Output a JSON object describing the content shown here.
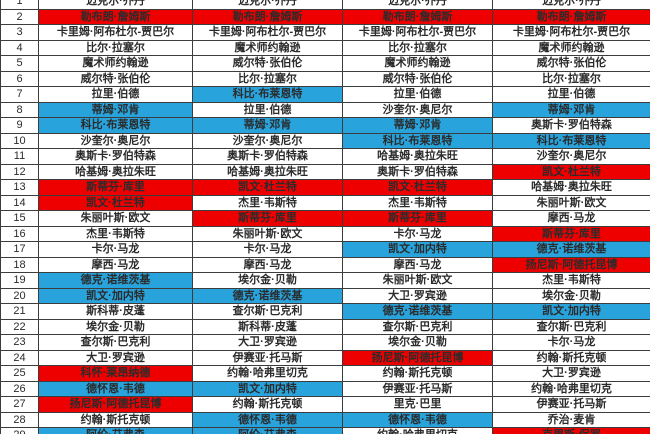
{
  "colors": {
    "red_highlight": "#ee0000",
    "blue_highlight": "#29a3dc",
    "grid_line": "#3c3c3c",
    "text": "#2b2b2b"
  },
  "table": {
    "description": "4-column all-time NBA player ranking comparison table, rows 1-29, red and blue highlighted cells",
    "rows": [
      {
        "rank": "1",
        "cells": [
          {
            "text": "迈克尔·乔丹",
            "hl": ""
          },
          {
            "text": "迈克尔·乔丹",
            "hl": ""
          },
          {
            "text": "迈克尔·乔丹",
            "hl": ""
          },
          {
            "text": "迈克尔·乔丹",
            "hl": ""
          }
        ]
      },
      {
        "rank": "2",
        "cells": [
          {
            "text": "勒布朗·詹姆斯",
            "hl": "red"
          },
          {
            "text": "勒布朗·詹姆斯",
            "hl": "red"
          },
          {
            "text": "勒布朗·詹姆斯",
            "hl": "red"
          },
          {
            "text": "勒布朗·詹姆斯",
            "hl": "red"
          }
        ]
      },
      {
        "rank": "3",
        "cells": [
          {
            "text": "卡里姆·阿布杜尔-贾巴尔",
            "hl": ""
          },
          {
            "text": "卡里姆·阿布杜尔-贾巴尔",
            "hl": ""
          },
          {
            "text": "卡里姆·阿布杜尔-贾巴尔",
            "hl": ""
          },
          {
            "text": "卡里姆·阿布杜尔-贾巴尔",
            "hl": ""
          }
        ]
      },
      {
        "rank": "4",
        "cells": [
          {
            "text": "比尔·拉塞尔",
            "hl": ""
          },
          {
            "text": "魔术师约翰逊",
            "hl": ""
          },
          {
            "text": "比尔·拉塞尔",
            "hl": ""
          },
          {
            "text": "魔术师约翰逊",
            "hl": ""
          }
        ]
      },
      {
        "rank": "5",
        "cells": [
          {
            "text": "魔术师约翰逊",
            "hl": ""
          },
          {
            "text": "威尔特·张伯伦",
            "hl": ""
          },
          {
            "text": "魔术师约翰逊",
            "hl": ""
          },
          {
            "text": "威尔特·张伯伦",
            "hl": ""
          }
        ]
      },
      {
        "rank": "6",
        "cells": [
          {
            "text": "威尔特·张伯伦",
            "hl": ""
          },
          {
            "text": "比尔·拉塞尔",
            "hl": ""
          },
          {
            "text": "威尔特·张伯伦",
            "hl": ""
          },
          {
            "text": "比尔·拉塞尔",
            "hl": ""
          }
        ]
      },
      {
        "rank": "7",
        "cells": [
          {
            "text": "拉里·伯德",
            "hl": ""
          },
          {
            "text": "科比·布莱恩特",
            "hl": "blue"
          },
          {
            "text": "拉里·伯德",
            "hl": ""
          },
          {
            "text": "拉里·伯德",
            "hl": ""
          }
        ]
      },
      {
        "rank": "8",
        "cells": [
          {
            "text": "蒂姆·邓肯",
            "hl": "blue"
          },
          {
            "text": "拉里·伯德",
            "hl": ""
          },
          {
            "text": "沙奎尔·奥尼尔",
            "hl": ""
          },
          {
            "text": "蒂姆·邓肯",
            "hl": "blue"
          }
        ]
      },
      {
        "rank": "9",
        "cells": [
          {
            "text": "科比·布莱恩特",
            "hl": "blue"
          },
          {
            "text": "蒂姆·邓肯",
            "hl": "blue"
          },
          {
            "text": "蒂姆·邓肯",
            "hl": "blue"
          },
          {
            "text": "奥斯卡·罗伯特森",
            "hl": ""
          }
        ]
      },
      {
        "rank": "10",
        "cells": [
          {
            "text": "沙奎尔·奥尼尔",
            "hl": ""
          },
          {
            "text": "沙奎尔·奥尼尔",
            "hl": ""
          },
          {
            "text": "科比·布莱恩特",
            "hl": "blue"
          },
          {
            "text": "科比·布莱恩特",
            "hl": "blue"
          }
        ]
      },
      {
        "rank": "11",
        "cells": [
          {
            "text": "奥斯卡·罗伯特森",
            "hl": ""
          },
          {
            "text": "奥斯卡·罗伯特森",
            "hl": ""
          },
          {
            "text": "哈基姆·奥拉朱旺",
            "hl": ""
          },
          {
            "text": "沙奎尔·奥尼尔",
            "hl": ""
          }
        ]
      },
      {
        "rank": "12",
        "cells": [
          {
            "text": "哈基姆·奥拉朱旺",
            "hl": ""
          },
          {
            "text": "哈基姆·奥拉朱旺",
            "hl": ""
          },
          {
            "text": "奥斯卡·罗伯特森",
            "hl": ""
          },
          {
            "text": "凯文·杜兰特",
            "hl": "red"
          }
        ]
      },
      {
        "rank": "13",
        "cells": [
          {
            "text": "斯蒂芬·库里",
            "hl": "red"
          },
          {
            "text": "凯文·杜兰特",
            "hl": "red"
          },
          {
            "text": "凯文·杜兰特",
            "hl": "red"
          },
          {
            "text": "哈基姆·奥拉朱旺",
            "hl": ""
          }
        ]
      },
      {
        "rank": "14",
        "cells": [
          {
            "text": "凯文·杜兰特",
            "hl": "red"
          },
          {
            "text": "杰里·韦斯特",
            "hl": ""
          },
          {
            "text": "杰里·韦斯特",
            "hl": ""
          },
          {
            "text": "朱丽叶斯·欧文",
            "hl": ""
          }
        ]
      },
      {
        "rank": "15",
        "cells": [
          {
            "text": "朱丽叶斯·欧文",
            "hl": ""
          },
          {
            "text": "斯蒂芬·库里",
            "hl": "red"
          },
          {
            "text": "斯蒂芬·库里",
            "hl": "red"
          },
          {
            "text": "摩西·马龙",
            "hl": ""
          }
        ]
      },
      {
        "rank": "16",
        "cells": [
          {
            "text": "杰里·韦斯特",
            "hl": ""
          },
          {
            "text": "朱丽叶斯·欧文",
            "hl": ""
          },
          {
            "text": "卡尔·马龙",
            "hl": ""
          },
          {
            "text": "斯蒂芬·库里",
            "hl": "red"
          }
        ]
      },
      {
        "rank": "17",
        "cells": [
          {
            "text": "卡尔·马龙",
            "hl": ""
          },
          {
            "text": "卡尔·马龙",
            "hl": ""
          },
          {
            "text": "凯文·加内特",
            "hl": "blue"
          },
          {
            "text": "德克·诺维茨基",
            "hl": "blue"
          }
        ]
      },
      {
        "rank": "18",
        "cells": [
          {
            "text": "摩西·马龙",
            "hl": ""
          },
          {
            "text": "摩西·马龙",
            "hl": ""
          },
          {
            "text": "摩西·马龙",
            "hl": ""
          },
          {
            "text": "扬尼斯·阿德托昆博",
            "hl": "red"
          }
        ]
      },
      {
        "rank": "19",
        "cells": [
          {
            "text": "德克·诺维茨基",
            "hl": "blue"
          },
          {
            "text": "埃尔金·贝勒",
            "hl": ""
          },
          {
            "text": "朱丽叶斯·欧文",
            "hl": ""
          },
          {
            "text": "杰里·韦斯特",
            "hl": ""
          }
        ]
      },
      {
        "rank": "20",
        "cells": [
          {
            "text": "凯文·加内特",
            "hl": "blue"
          },
          {
            "text": "德克·诺维茨基",
            "hl": "blue"
          },
          {
            "text": "大卫·罗宾逊",
            "hl": ""
          },
          {
            "text": "埃尔金·贝勒",
            "hl": ""
          }
        ]
      },
      {
        "rank": "21",
        "cells": [
          {
            "text": "斯科蒂·皮蓬",
            "hl": ""
          },
          {
            "text": "查尔斯·巴克利",
            "hl": ""
          },
          {
            "text": "德克·诺维茨基",
            "hl": "blue"
          },
          {
            "text": "凯文·加内特",
            "hl": "blue"
          }
        ]
      },
      {
        "rank": "22",
        "cells": [
          {
            "text": "埃尔金·贝勒",
            "hl": ""
          },
          {
            "text": "斯科蒂·皮蓬",
            "hl": ""
          },
          {
            "text": "查尔斯·巴克利",
            "hl": ""
          },
          {
            "text": "查尔斯·巴克利",
            "hl": ""
          }
        ]
      },
      {
        "rank": "23",
        "cells": [
          {
            "text": "查尔斯·巴克利",
            "hl": ""
          },
          {
            "text": "大卫·罗宾逊",
            "hl": ""
          },
          {
            "text": "埃尔金·贝勒",
            "hl": ""
          },
          {
            "text": "卡尔·马龙",
            "hl": ""
          }
        ]
      },
      {
        "rank": "24",
        "cells": [
          {
            "text": "大卫·罗宾逊",
            "hl": ""
          },
          {
            "text": "伊赛亚·托马斯",
            "hl": ""
          },
          {
            "text": "扬尼斯·阿德托昆博",
            "hl": "red"
          },
          {
            "text": "约翰·斯托克顿",
            "hl": ""
          }
        ]
      },
      {
        "rank": "25",
        "cells": [
          {
            "text": "科怀·莱昂纳德",
            "hl": "red"
          },
          {
            "text": "约翰·哈弗里切克",
            "hl": ""
          },
          {
            "text": "约翰·斯托克顿",
            "hl": ""
          },
          {
            "text": "大卫·罗宾逊",
            "hl": ""
          }
        ]
      },
      {
        "rank": "26",
        "cells": [
          {
            "text": "德怀恩·韦德",
            "hl": "blue"
          },
          {
            "text": "凯文·加内特",
            "hl": "blue"
          },
          {
            "text": "伊赛亚·托马斯",
            "hl": ""
          },
          {
            "text": "约翰·哈弗里切克",
            "hl": ""
          }
        ]
      },
      {
        "rank": "27",
        "cells": [
          {
            "text": "扬尼斯·阿德托昆博",
            "hl": "red"
          },
          {
            "text": "约翰·斯托克顿",
            "hl": ""
          },
          {
            "text": "里克·巴里",
            "hl": ""
          },
          {
            "text": "伊赛亚·托马斯",
            "hl": ""
          }
        ]
      },
      {
        "rank": "28",
        "cells": [
          {
            "text": "约翰·斯托克顿",
            "hl": ""
          },
          {
            "text": "德怀恩·韦德",
            "hl": "blue"
          },
          {
            "text": "德怀恩·韦德",
            "hl": "blue"
          },
          {
            "text": "乔治·麦肯",
            "hl": ""
          }
        ]
      },
      {
        "rank": "29",
        "cells": [
          {
            "text": "阿伦·艾弗森",
            "hl": "blue"
          },
          {
            "text": "阿伦·艾弗森",
            "hl": "blue"
          },
          {
            "text": "约翰·哈弗里切克",
            "hl": ""
          },
          {
            "text": "克里斯·保罗",
            "hl": "red"
          }
        ]
      }
    ]
  }
}
